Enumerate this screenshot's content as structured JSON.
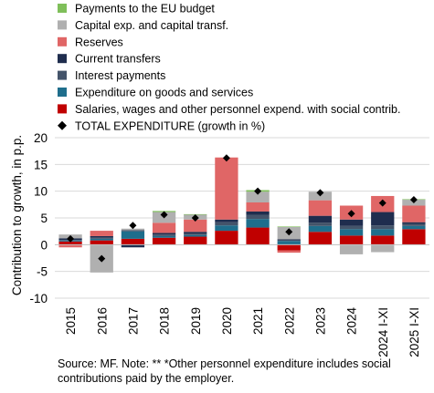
{
  "chart_data": {
    "type": "bar",
    "stacked": true,
    "categories": [
      "2015",
      "2016",
      "2017",
      "2018",
      "2019",
      "2020",
      "2021",
      "2022",
      "2023",
      "2024",
      "2024 I-XI",
      "2025 I-XI"
    ],
    "ylabel": "Contribution to growth, in p.p.",
    "ylim": [
      -10,
      20
    ],
    "yticks": [
      -10,
      -5,
      0,
      5,
      10,
      15,
      20
    ],
    "grid": true,
    "legend_position": "top",
    "series": [
      {
        "name": "Salaries, wages and other personnel expend. with social contrib.",
        "color": "#c00000",
        "values": [
          0.6,
          0.8,
          1.1,
          1.3,
          1.5,
          2.6,
          3.2,
          -1.1,
          2.4,
          1.7,
          1.7,
          2.9
        ]
      },
      {
        "name": "Expenditure on goods and services",
        "color": "#1f6e8c",
        "values": [
          0.2,
          0.3,
          1.4,
          0.3,
          0.3,
          1.0,
          1.6,
          0.7,
          1.1,
          1.2,
          1.2,
          0.6
        ]
      },
      {
        "name": "Interest payments",
        "color": "#44546a",
        "values": [
          0.1,
          0.2,
          0.2,
          0.3,
          0.3,
          0.6,
          0.8,
          0.1,
          0.6,
          0.6,
          0.7,
          0.4
        ]
      },
      {
        "name": "Current transfers",
        "color": "#1f2d4e",
        "values": [
          0.3,
          0.3,
          -0.5,
          0.3,
          0.3,
          0.5,
          0.6,
          0.2,
          1.3,
          1.2,
          2.5,
          0.3
        ]
      },
      {
        "name": "Reserves",
        "color": "#e06666",
        "values": [
          -0.5,
          1.0,
          0.0,
          1.9,
          2.3,
          11.6,
          1.7,
          -0.4,
          2.9,
          2.6,
          3.0,
          3.1
        ]
      },
      {
        "name": "Capital exp. and capital transf.",
        "color": "#b0b0b0",
        "values": [
          0.7,
          -5.2,
          0.3,
          2.0,
          0.9,
          0.0,
          2.0,
          2.3,
          1.6,
          -1.8,
          -1.4,
          1.1
        ]
      },
      {
        "name": "Payments to the EU budget",
        "color": "#7fbf5a",
        "values": [
          0.0,
          0.0,
          0.0,
          0.2,
          0.1,
          0.0,
          0.3,
          0.1,
          0.0,
          0.0,
          0.0,
          0.1
        ]
      }
    ],
    "markers": {
      "name": "TOTAL EXPENDITURE (growth in %)",
      "color": "#000000",
      "symbol": "diamond",
      "values": [
        1.1,
        -2.6,
        3.6,
        5.6,
        5.0,
        16.2,
        10.0,
        2.4,
        9.7,
        5.8,
        7.8,
        8.4
      ]
    }
  },
  "source_note": "Source: MF. Note: ** *Other personnel expenditure includes social contributions paid by the employer."
}
